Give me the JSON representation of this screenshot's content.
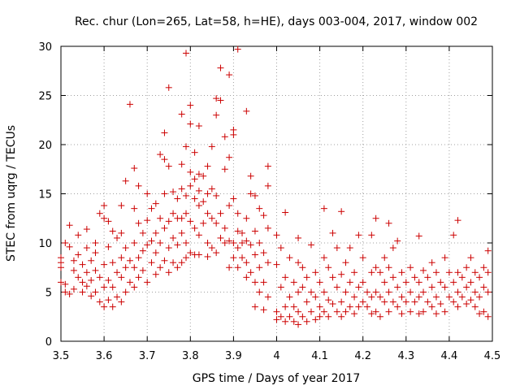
{
  "chart_data": {
    "type": "scatter",
    "title": "Rec. chur (Lon=265, Lat=58, h=HE), days 003-004, 2017, window 002",
    "xlabel": "GPS time / Days of year 2017",
    "ylabel": "STEC from uqrg / TECUs",
    "xlim": [
      3.5,
      4.5
    ],
    "ylim": [
      0,
      30
    ],
    "xticks": [
      "3.5",
      "3.6",
      "3.7",
      "3.8",
      "3.9",
      "4",
      "4.1",
      "4.2",
      "4.3",
      "4.4",
      "4.5"
    ],
    "yticks": [
      "0",
      "5",
      "10",
      "15",
      "20",
      "25",
      "30"
    ],
    "grid": true,
    "marker": "+",
    "color": "#cc0000",
    "points": [
      [
        3.5,
        8.5
      ],
      [
        3.5,
        8.0
      ],
      [
        3.5,
        7.5
      ],
      [
        3.5,
        6.0
      ],
      [
        3.51,
        5.0
      ],
      [
        3.51,
        5.8
      ],
      [
        3.51,
        10.0
      ],
      [
        3.52,
        9.6
      ],
      [
        3.52,
        4.8
      ],
      [
        3.52,
        11.8
      ],
      [
        3.53,
        8.2
      ],
      [
        3.53,
        7.2
      ],
      [
        3.53,
        5.3
      ],
      [
        3.54,
        8.8
      ],
      [
        3.54,
        6.5
      ],
      [
        3.54,
        10.8
      ],
      [
        3.55,
        7.8
      ],
      [
        3.55,
        5.0
      ],
      [
        3.55,
        6.0
      ],
      [
        3.56,
        11.4
      ],
      [
        3.56,
        9.5
      ],
      [
        3.56,
        7.0
      ],
      [
        3.56,
        5.6
      ],
      [
        3.57,
        8.2
      ],
      [
        3.57,
        6.2
      ],
      [
        3.57,
        4.6
      ],
      [
        3.58,
        10.0
      ],
      [
        3.58,
        9.0
      ],
      [
        3.58,
        7.2
      ],
      [
        3.58,
        5.0
      ],
      [
        3.59,
        13.0
      ],
      [
        3.59,
        6.5
      ],
      [
        3.59,
        4.0
      ],
      [
        3.6,
        13.8
      ],
      [
        3.6,
        12.5
      ],
      [
        3.6,
        7.8
      ],
      [
        3.6,
        5.5
      ],
      [
        3.6,
        3.5
      ],
      [
        3.61,
        12.2
      ],
      [
        3.61,
        9.6
      ],
      [
        3.61,
        6.2
      ],
      [
        3.61,
        4.2
      ],
      [
        3.62,
        11.2
      ],
      [
        3.62,
        8.0
      ],
      [
        3.62,
        5.5
      ],
      [
        3.62,
        3.5
      ],
      [
        3.63,
        10.5
      ],
      [
        3.63,
        7.0
      ],
      [
        3.63,
        4.5
      ],
      [
        3.64,
        13.8
      ],
      [
        3.64,
        11.0
      ],
      [
        3.64,
        8.5
      ],
      [
        3.64,
        6.5
      ],
      [
        3.64,
        4.0
      ],
      [
        3.65,
        16.3
      ],
      [
        3.65,
        9.5
      ],
      [
        3.65,
        7.5
      ],
      [
        3.65,
        5.0
      ],
      [
        3.66,
        24.1
      ],
      [
        3.66,
        8.2
      ],
      [
        3.66,
        6.0
      ],
      [
        3.67,
        17.6
      ],
      [
        3.67,
        13.5
      ],
      [
        3.67,
        10.0
      ],
      [
        3.67,
        7.5
      ],
      [
        3.67,
        5.5
      ],
      [
        3.68,
        15.8
      ],
      [
        3.68,
        12.0
      ],
      [
        3.68,
        8.5
      ],
      [
        3.68,
        6.5
      ],
      [
        3.69,
        11.0
      ],
      [
        3.69,
        9.2
      ],
      [
        3.69,
        7.2
      ],
      [
        3.7,
        15.0
      ],
      [
        3.7,
        12.3
      ],
      [
        3.7,
        9.8
      ],
      [
        3.7,
        6.0
      ],
      [
        3.71,
        13.5
      ],
      [
        3.71,
        10.2
      ],
      [
        3.71,
        8.0
      ],
      [
        3.72,
        14.0
      ],
      [
        3.72,
        11.0
      ],
      [
        3.72,
        9.0
      ],
      [
        3.72,
        6.8
      ],
      [
        3.73,
        19.0
      ],
      [
        3.73,
        12.5
      ],
      [
        3.73,
        10.0
      ],
      [
        3.73,
        7.5
      ],
      [
        3.74,
        21.2
      ],
      [
        3.74,
        18.5
      ],
      [
        3.74,
        15.0
      ],
      [
        3.74,
        11.5
      ],
      [
        3.74,
        8.2
      ],
      [
        3.75,
        25.8
      ],
      [
        3.75,
        17.8
      ],
      [
        3.75,
        12.2
      ],
      [
        3.75,
        9.5
      ],
      [
        3.75,
        7.0
      ],
      [
        3.76,
        15.2
      ],
      [
        3.76,
        13.0
      ],
      [
        3.76,
        10.5
      ],
      [
        3.76,
        8.0
      ],
      [
        3.77,
        14.5
      ],
      [
        3.77,
        12.5
      ],
      [
        3.77,
        9.8
      ],
      [
        3.77,
        7.5
      ],
      [
        3.78,
        23.1
      ],
      [
        3.78,
        18.0
      ],
      [
        3.78,
        15.5
      ],
      [
        3.78,
        12.5
      ],
      [
        3.78,
        11.0
      ],
      [
        3.78,
        8.0
      ],
      [
        3.79,
        29.3
      ],
      [
        3.79,
        19.8
      ],
      [
        3.79,
        14.8
      ],
      [
        3.79,
        13.0
      ],
      [
        3.79,
        10.0
      ],
      [
        3.79,
        8.5
      ],
      [
        3.8,
        24.0
      ],
      [
        3.8,
        22.1
      ],
      [
        3.8,
        17.2
      ],
      [
        3.8,
        15.8
      ],
      [
        3.8,
        12.2
      ],
      [
        3.8,
        9.0
      ],
      [
        3.81,
        19.2
      ],
      [
        3.81,
        16.5
      ],
      [
        3.81,
        14.5
      ],
      [
        3.81,
        11.5
      ],
      [
        3.81,
        8.8
      ],
      [
        3.82,
        21.9
      ],
      [
        3.82,
        17.0
      ],
      [
        3.82,
        15.3
      ],
      [
        3.82,
        13.8
      ],
      [
        3.82,
        10.8
      ],
      [
        3.82,
        8.8
      ],
      [
        3.83,
        16.8
      ],
      [
        3.83,
        14.2
      ],
      [
        3.83,
        12.0
      ],
      [
        3.84,
        17.8
      ],
      [
        3.84,
        15.0
      ],
      [
        3.84,
        13.0
      ],
      [
        3.84,
        10.0
      ],
      [
        3.84,
        8.6
      ],
      [
        3.85,
        19.8
      ],
      [
        3.85,
        15.5
      ],
      [
        3.85,
        12.5
      ],
      [
        3.85,
        9.5
      ],
      [
        3.86,
        24.7
      ],
      [
        3.86,
        23.0
      ],
      [
        3.86,
        14.8
      ],
      [
        3.86,
        12.0
      ],
      [
        3.86,
        9.0
      ],
      [
        3.87,
        27.8
      ],
      [
        3.87,
        24.5
      ],
      [
        3.87,
        13.0
      ],
      [
        3.87,
        10.5
      ],
      [
        3.88,
        20.8
      ],
      [
        3.88,
        17.5
      ],
      [
        3.88,
        11.5
      ],
      [
        3.88,
        10.0
      ],
      [
        3.89,
        27.1
      ],
      [
        3.89,
        18.7
      ],
      [
        3.89,
        13.8
      ],
      [
        3.89,
        10.2
      ],
      [
        3.89,
        7.5
      ],
      [
        3.9,
        21.5
      ],
      [
        3.9,
        21.0
      ],
      [
        3.9,
        14.5
      ],
      [
        3.9,
        10.0
      ],
      [
        3.9,
        8.5
      ],
      [
        3.91,
        29.7
      ],
      [
        3.91,
        13.0
      ],
      [
        3.91,
        11.2
      ],
      [
        3.91,
        9.5
      ],
      [
        3.91,
        7.5
      ],
      [
        3.92,
        11.0
      ],
      [
        3.92,
        10.0
      ],
      [
        3.92,
        8.5
      ],
      [
        3.93,
        23.4
      ],
      [
        3.93,
        12.5
      ],
      [
        3.93,
        10.2
      ],
      [
        3.93,
        8.0
      ],
      [
        3.93,
        6.5
      ],
      [
        3.94,
        16.8
      ],
      [
        3.94,
        15.0
      ],
      [
        3.94,
        9.8
      ],
      [
        3.94,
        7.0
      ],
      [
        3.95,
        14.8
      ],
      [
        3.95,
        11.2
      ],
      [
        3.95,
        8.8
      ],
      [
        3.95,
        6.0
      ],
      [
        3.95,
        3.5
      ],
      [
        3.96,
        13.5
      ],
      [
        3.96,
        10.0
      ],
      [
        3.96,
        7.5
      ],
      [
        3.96,
        5.0
      ],
      [
        3.97,
        12.8
      ],
      [
        3.97,
        9.0
      ],
      [
        3.97,
        6.0
      ],
      [
        3.97,
        3.2
      ],
      [
        3.98,
        15.8
      ],
      [
        3.98,
        17.8
      ],
      [
        3.98,
        11.5
      ],
      [
        3.98,
        8.0
      ],
      [
        3.98,
        4.5
      ],
      [
        4.0,
        10.8
      ],
      [
        4.0,
        7.8
      ],
      [
        4.0,
        3.0
      ],
      [
        4.0,
        2.2
      ],
      [
        4.01,
        9.5
      ],
      [
        4.01,
        5.5
      ],
      [
        4.01,
        2.5
      ],
      [
        4.02,
        13.1
      ],
      [
        4.02,
        6.5
      ],
      [
        4.02,
        3.5
      ],
      [
        4.02,
        2.0
      ],
      [
        4.03,
        8.5
      ],
      [
        4.03,
        4.5
      ],
      [
        4.03,
        2.5
      ],
      [
        4.04,
        6.0
      ],
      [
        4.04,
        3.5
      ],
      [
        4.04,
        2.0
      ],
      [
        4.05,
        10.5
      ],
      [
        4.05,
        8.0
      ],
      [
        4.05,
        5.0
      ],
      [
        4.05,
        3.0
      ],
      [
        4.05,
        1.7
      ],
      [
        4.06,
        7.5
      ],
      [
        4.06,
        5.5
      ],
      [
        4.06,
        2.5
      ],
      [
        4.07,
        6.5
      ],
      [
        4.07,
        4.0
      ],
      [
        4.07,
        2.0
      ],
      [
        4.08,
        9.8
      ],
      [
        4.08,
        5.0
      ],
      [
        4.08,
        3.0
      ],
      [
        4.09,
        7.0
      ],
      [
        4.09,
        4.5
      ],
      [
        4.09,
        2.2
      ],
      [
        4.1,
        6.0
      ],
      [
        4.1,
        3.5
      ],
      [
        4.1,
        2.5
      ],
      [
        4.11,
        13.5
      ],
      [
        4.11,
        8.5
      ],
      [
        4.11,
        5.0
      ],
      [
        4.11,
        3.0
      ],
      [
        4.12,
        7.5
      ],
      [
        4.12,
        4.2
      ],
      [
        4.12,
        2.5
      ],
      [
        4.13,
        11.0
      ],
      [
        4.13,
        6.5
      ],
      [
        4.13,
        3.8
      ],
      [
        4.14,
        9.5
      ],
      [
        4.14,
        5.5
      ],
      [
        4.14,
        3.0
      ],
      [
        4.15,
        13.2
      ],
      [
        4.15,
        6.8
      ],
      [
        4.15,
        4.0
      ],
      [
        4.15,
        2.5
      ],
      [
        4.16,
        8.0
      ],
      [
        4.16,
        5.0
      ],
      [
        4.16,
        3.0
      ],
      [
        4.17,
        9.5
      ],
      [
        4.17,
        6.0
      ],
      [
        4.17,
        3.5
      ],
      [
        4.18,
        7.0
      ],
      [
        4.18,
        4.5
      ],
      [
        4.18,
        2.8
      ],
      [
        4.19,
        10.8
      ],
      [
        4.19,
        5.5
      ],
      [
        4.19,
        3.5
      ],
      [
        4.2,
        8.5
      ],
      [
        4.2,
        6.0
      ],
      [
        4.2,
        4.0
      ],
      [
        4.21,
        5.0
      ],
      [
        4.21,
        3.5
      ],
      [
        4.22,
        10.8
      ],
      [
        4.22,
        7.0
      ],
      [
        4.22,
        4.5
      ],
      [
        4.22,
        2.8
      ],
      [
        4.23,
        12.5
      ],
      [
        4.23,
        7.5
      ],
      [
        4.23,
        5.0
      ],
      [
        4.23,
        3.0
      ],
      [
        4.24,
        7.0
      ],
      [
        4.24,
        4.5
      ],
      [
        4.24,
        2.5
      ],
      [
        4.25,
        8.5
      ],
      [
        4.25,
        6.0
      ],
      [
        4.25,
        4.0
      ],
      [
        4.26,
        12.0
      ],
      [
        4.26,
        7.5
      ],
      [
        4.26,
        5.0
      ],
      [
        4.26,
        3.0
      ],
      [
        4.27,
        9.5
      ],
      [
        4.27,
        6.5
      ],
      [
        4.27,
        4.0
      ],
      [
        4.28,
        10.2
      ],
      [
        4.28,
        5.5
      ],
      [
        4.28,
        3.5
      ],
      [
        4.29,
        7.0
      ],
      [
        4.29,
        4.5
      ],
      [
        4.29,
        2.8
      ],
      [
        4.3,
        6.0
      ],
      [
        4.3,
        4.0
      ],
      [
        4.31,
        7.5
      ],
      [
        4.31,
        5.0
      ],
      [
        4.31,
        3.0
      ],
      [
        4.32,
        6.5
      ],
      [
        4.32,
        4.0
      ],
      [
        4.33,
        10.7
      ],
      [
        4.33,
        6.0
      ],
      [
        4.33,
        4.5
      ],
      [
        4.33,
        2.8
      ],
      [
        4.34,
        7.2
      ],
      [
        4.34,
        5.0
      ],
      [
        4.34,
        3.0
      ],
      [
        4.35,
        6.5
      ],
      [
        4.35,
        4.0
      ],
      [
        4.36,
        8.0
      ],
      [
        4.36,
        5.5
      ],
      [
        4.36,
        3.5
      ],
      [
        4.37,
        7.0
      ],
      [
        4.37,
        4.5
      ],
      [
        4.37,
        2.8
      ],
      [
        4.38,
        6.0
      ],
      [
        4.38,
        3.8
      ],
      [
        4.39,
        8.5
      ],
      [
        4.39,
        5.5
      ],
      [
        4.39,
        3.0
      ],
      [
        4.4,
        7.0
      ],
      [
        4.4,
        4.5
      ],
      [
        4.41,
        10.8
      ],
      [
        4.41,
        6.0
      ],
      [
        4.41,
        4.0
      ],
      [
        4.42,
        12.3
      ],
      [
        4.42,
        7.0
      ],
      [
        4.42,
        5.0
      ],
      [
        4.42,
        3.5
      ],
      [
        4.43,
        6.5
      ],
      [
        4.43,
        4.5
      ],
      [
        4.44,
        7.5
      ],
      [
        4.44,
        5.5
      ],
      [
        4.44,
        3.8
      ],
      [
        4.45,
        8.5
      ],
      [
        4.45,
        6.0
      ],
      [
        4.45,
        4.2
      ],
      [
        4.46,
        7.0
      ],
      [
        4.46,
        5.0
      ],
      [
        4.46,
        3.5
      ],
      [
        4.47,
        6.5
      ],
      [
        4.47,
        4.5
      ],
      [
        4.47,
        2.8
      ],
      [
        4.48,
        7.5
      ],
      [
        4.48,
        5.5
      ],
      [
        4.48,
        3.0
      ],
      [
        4.49,
        9.2
      ],
      [
        4.49,
        7.0
      ],
      [
        4.49,
        5.0
      ],
      [
        4.49,
        2.5
      ]
    ]
  }
}
